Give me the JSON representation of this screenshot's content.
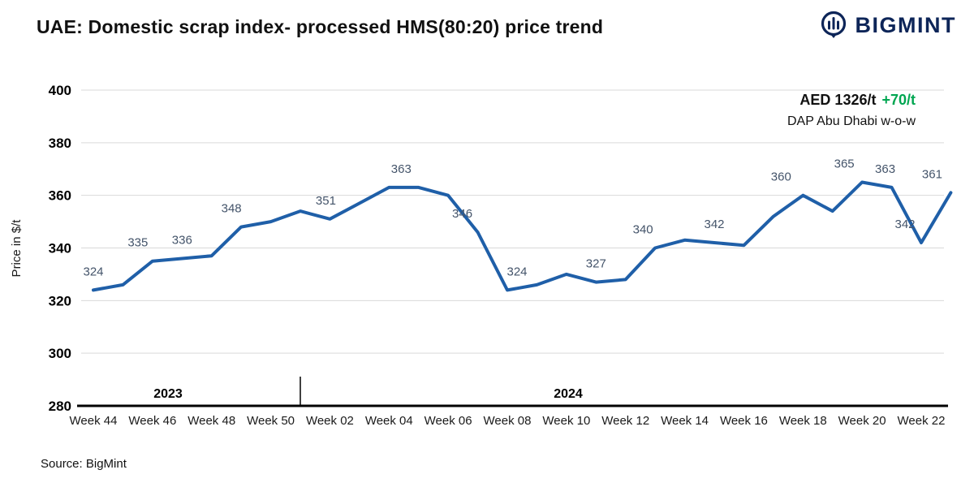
{
  "header": {
    "title": "UAE: Domestic scrap index- processed HMS(80:20) price trend",
    "logo_text": "BIGMINT",
    "logo_color": "#0D2558"
  },
  "annotation": {
    "price": "AED 1326/t",
    "change": "+70/t",
    "change_color": "#00A651",
    "note": "DAP Abu Dhabi w-o-w"
  },
  "footer": {
    "source": "Source: BigMint"
  },
  "chart_data": {
    "type": "line",
    "title": "UAE: Domestic scrap index- processed HMS(80:20) price trend",
    "xlabel": "",
    "ylabel": "Price in $/t",
    "ylim": [
      280,
      400
    ],
    "yticks": [
      280,
      300,
      320,
      340,
      360,
      380,
      400
    ],
    "grid": true,
    "legend": false,
    "line_color": "#1F5FA8",
    "label_color": "#44546A",
    "x_tick_labels": [
      "Week 44",
      "Week 46",
      "Week 48",
      "Week 50",
      "Week 02",
      "Week 04",
      "Week 06",
      "Week 08",
      "Week 10",
      "Week 12",
      "Week 14",
      "Week 16",
      "Week 18",
      "Week 20",
      "Week 22"
    ],
    "year_labels": [
      "2023",
      "2024"
    ],
    "series": [
      {
        "name": "Domestic scrap index processed HMS(80:20), $/t",
        "points": [
          {
            "week": "Week 44 2023",
            "value": 324,
            "label": "324"
          },
          {
            "week": "Week 45 2023",
            "value": 326
          },
          {
            "week": "Week 46 2023",
            "value": 335,
            "label": "335",
            "dx": -18
          },
          {
            "week": "Week 47 2023",
            "value": 336,
            "label": "336"
          },
          {
            "week": "Week 48 2023",
            "value": 337
          },
          {
            "week": "Week 49 2023",
            "value": 348,
            "label": "348",
            "dx": -12
          },
          {
            "week": "Week 50 2023",
            "value": 350
          },
          {
            "week": "Week 52 2023",
            "value": 354
          },
          {
            "week": "Week 02 2024",
            "value": 351,
            "label": "351",
            "dx": -5
          },
          {
            "week": "Week 03 2024",
            "value": 357
          },
          {
            "week": "Week 04 2024",
            "value": 363,
            "label": "363",
            "dx": 15
          },
          {
            "week": "Week 05 2024",
            "value": 363
          },
          {
            "week": "Week 06 2024",
            "value": 360
          },
          {
            "week": "Week 07 2024",
            "value": 346,
            "label": "346",
            "dx": -19
          },
          {
            "week": "Week 08 2024",
            "value": 324,
            "label": "324",
            "dx": 12
          },
          {
            "week": "Week 09 2024",
            "value": 326
          },
          {
            "week": "Week 10 2024",
            "value": 330
          },
          {
            "week": "Week 11 2024",
            "value": 327,
            "label": "327"
          },
          {
            "week": "Week 12 2024",
            "value": 328
          },
          {
            "week": "Week 13 2024",
            "value": 340,
            "label": "340",
            "dx": -15
          },
          {
            "week": "Week 14 2024",
            "value": 343
          },
          {
            "week": "Week 15 2024",
            "value": 342,
            "label": "342"
          },
          {
            "week": "Week 16 2024",
            "value": 341
          },
          {
            "week": "Week 17 2024",
            "value": 352
          },
          {
            "week": "Week 18 2024",
            "value": 360,
            "label": "360",
            "dx": -27
          },
          {
            "week": "Week 19 2024",
            "value": 354
          },
          {
            "week": "Week 20 2024",
            "value": 365,
            "label": "365",
            "dx": -22
          },
          {
            "week": "Week 21 2024",
            "value": 363,
            "label": "363",
            "dx": -8
          },
          {
            "week": "Week 22 2024",
            "value": 342,
            "label": "342",
            "dx": -20
          },
          {
            "week": "Week 23 2024",
            "value": 361,
            "label": "361",
            "dx": -23
          }
        ]
      }
    ]
  }
}
